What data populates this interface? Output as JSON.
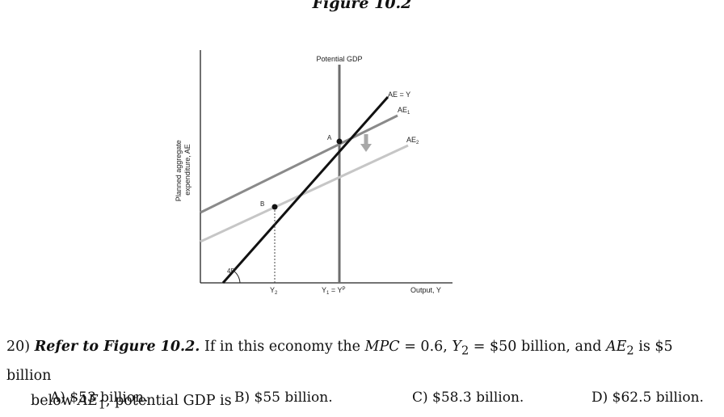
{
  "figure": {
    "title": "Figure 10.2",
    "y_axis_label_line1": "Planned aggregate",
    "y_axis_label_line2": "expenditure, AE",
    "x_axis_label": "Output, Y",
    "potential_gdp_label": "Potential GDP",
    "angle_label": "45°",
    "line_labels": {
      "ae_equals_y": "AE = Y",
      "ae1": "AE",
      "ae1_sub": "1",
      "ae2": "AE",
      "ae2_sub": "2"
    },
    "point_labels": {
      "a": "A",
      "b": "B"
    },
    "tick_labels": {
      "y2": "Y",
      "y2_sub": "2",
      "y1": "Y",
      "y1_sub": "1",
      "y1_eq": " = Y",
      "y1_sup": "P"
    },
    "colors": {
      "ae_equals_y": "#111111",
      "ae1": "#8a8a8a",
      "ae2": "#c6c6c6",
      "potential": "#6d6d6d",
      "arrow": "#a8a8a8"
    }
  },
  "question": {
    "number": "20)",
    "bold_lead": "Refer to Figure 10.2.",
    "text_pre": " If in this economy the ",
    "mpc_label": "MPC",
    "text_mpc": " = 0.6, ",
    "y2_label": "Y",
    "y2_sub": "2",
    "text_y2": " = $50 billion, and ",
    "ae2_label": "AE",
    "ae2_sub": "2",
    "text_ae2": " is $5 billion",
    "text_line2_pre": "below ",
    "ae1_label": "AE",
    "ae1_sub": "1",
    "text_line2_post": ", potential GDP is"
  },
  "choices": [
    {
      "label": "A) $53 billion."
    },
    {
      "label": "B) $55 billion."
    },
    {
      "label": "C) $58.3 billion."
    },
    {
      "label": "D) $62.5 billion."
    }
  ]
}
